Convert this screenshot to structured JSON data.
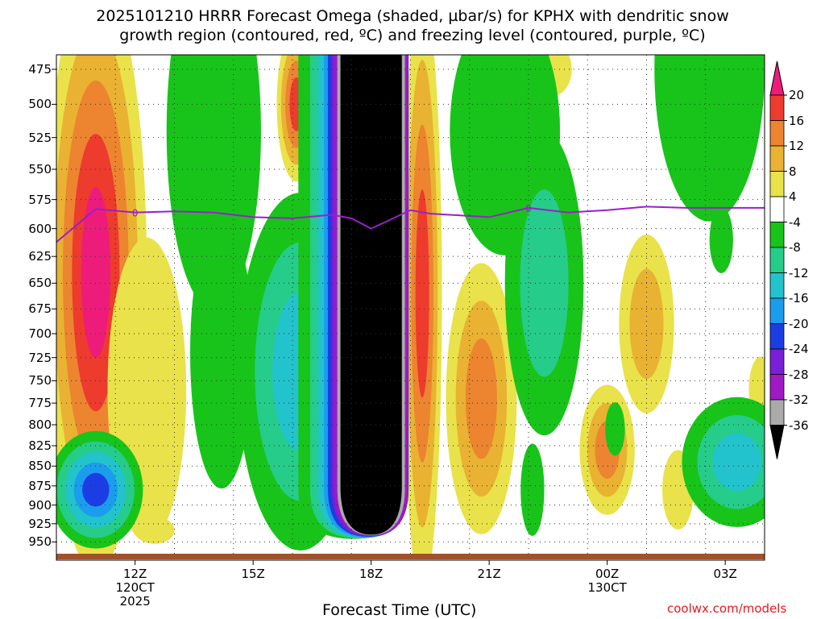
{
  "title_line1": "2025101210 HRRR Forecast Omega (shaded, µbar/s) for KPHX with dendritic snow",
  "title_line2": "growth region (contoured, red, ºC) and freezing level (contoured, purple, ºC)",
  "xlabel": "Forecast Time (UTC)",
  "credit": "coolwx.com/models",
  "colors": {
    "freezing_level": "#9b1fc8",
    "ground": "#a0522d",
    "black_core": "#000000"
  },
  "chart_data": {
    "type": "heatmap",
    "y_ticks": [
      "475",
      "500",
      "525",
      "550",
      "575",
      "600",
      "625",
      "650",
      "675",
      "700",
      "725",
      "750",
      "775",
      "800",
      "825",
      "850",
      "875",
      "900",
      "925",
      "950"
    ],
    "x_ticks": [
      {
        "hour": 12,
        "lines": [
          "12Z",
          "120CT",
          "2025"
        ]
      },
      {
        "hour": 15,
        "lines": [
          "15Z"
        ]
      },
      {
        "hour": 18,
        "lines": [
          "18Z"
        ]
      },
      {
        "hour": 21,
        "lines": [
          "21Z"
        ]
      },
      {
        "hour": 24,
        "lines": [
          "00Z",
          "130CT"
        ]
      },
      {
        "hour": 27,
        "lines": [
          "03Z"
        ]
      }
    ],
    "x_range_hours": [
      10,
      28
    ],
    "y_range_hPa": [
      465,
      970
    ],
    "y_scale": "log",
    "colorbar": {
      "labels": [
        "20",
        "16",
        "12",
        "8",
        "4",
        "-4",
        "-8",
        "-12",
        "-16",
        "-20",
        "-24",
        "-28",
        "-32",
        "-36"
      ],
      "levels": [
        {
          "value": ">20",
          "color": "#ed1c7a"
        },
        {
          "value": "16-20",
          "color": "#ed3b2e"
        },
        {
          "value": "12-16",
          "color": "#ec8430"
        },
        {
          "value": "8-12",
          "color": "#e9b232"
        },
        {
          "value": "4-8",
          "color": "#e9e24a"
        },
        {
          "value": "-4-4",
          "color": "#ffffff"
        },
        {
          "value": "-8--4",
          "color": "#18c41a"
        },
        {
          "value": "-12--8",
          "color": "#26cc8a"
        },
        {
          "value": "-16--12",
          "color": "#22c3cc"
        },
        {
          "value": "-20--16",
          "color": "#1b9dee"
        },
        {
          "value": "-24--20",
          "color": "#1d3de4"
        },
        {
          "value": "-28--24",
          "color": "#7a1fd8"
        },
        {
          "value": "-32--28",
          "color": "#a019c6"
        },
        {
          "value": "-36--32",
          "color": "#aaaaaa"
        },
        {
          "value": "<-36",
          "color": "#000000"
        }
      ]
    },
    "freezing_level_label": "0",
    "freezing_level_line": {
      "hours": [
        10,
        11,
        12,
        13,
        14,
        15,
        16,
        17,
        17.5,
        18,
        18.5,
        19,
        19.5,
        20,
        21,
        22,
        23,
        24,
        25,
        26,
        27,
        28
      ],
      "pressure_hPa": [
        612,
        583,
        586,
        585,
        586,
        590,
        591,
        588,
        591,
        600,
        592,
        584,
        587,
        588,
        590,
        582,
        586,
        584,
        581,
        582,
        582,
        582
      ]
    }
  }
}
